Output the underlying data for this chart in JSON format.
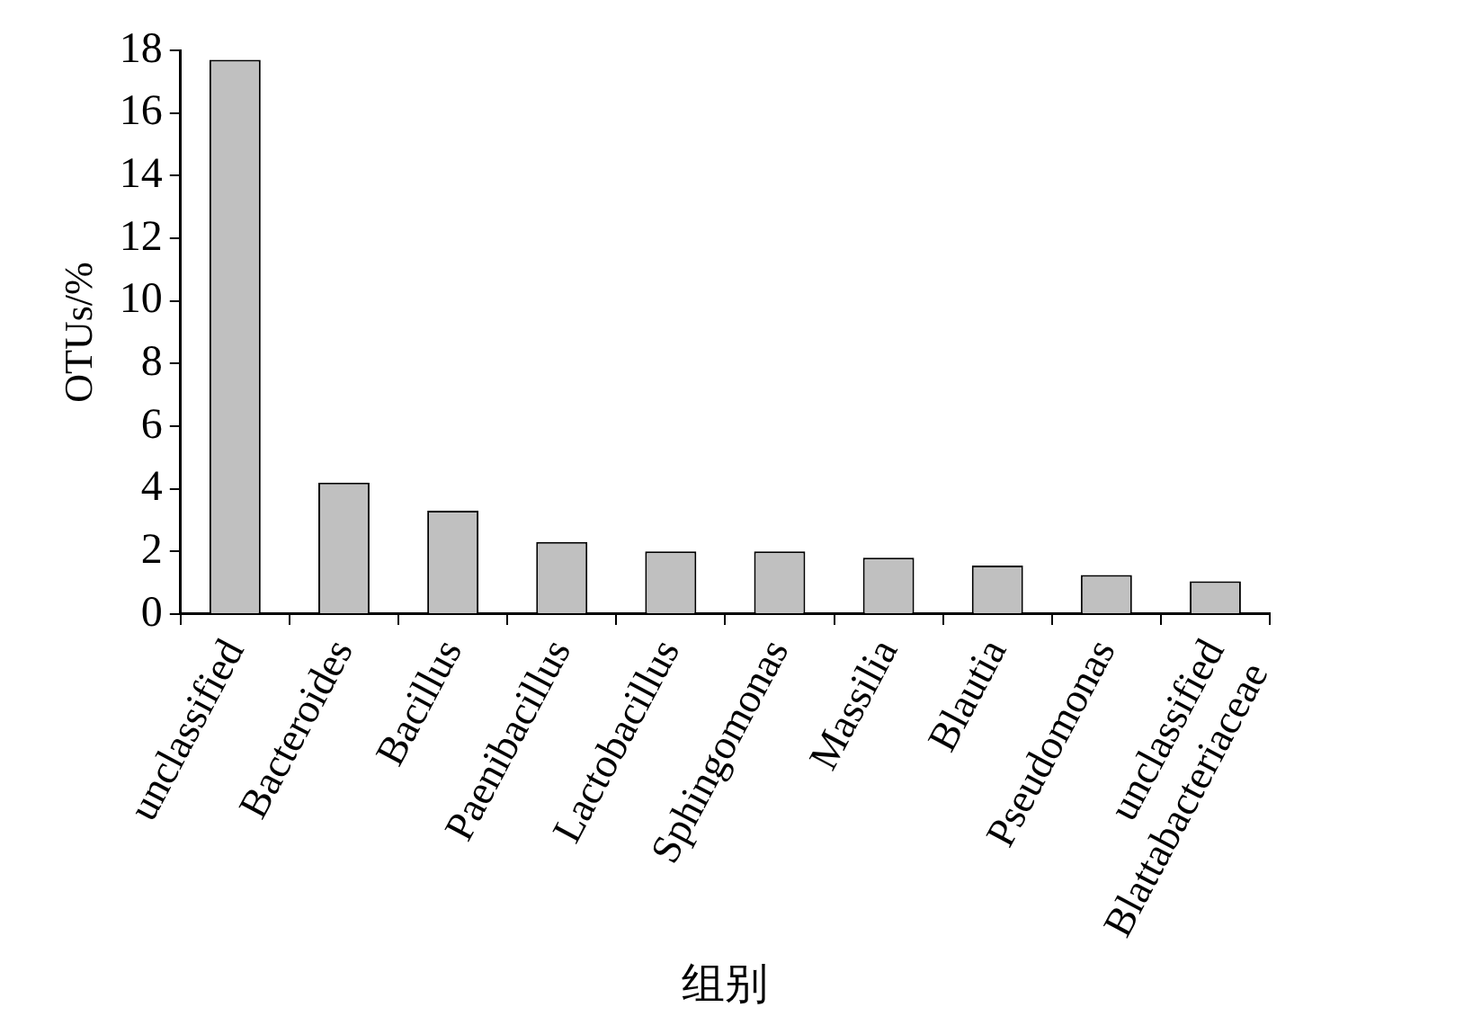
{
  "chart_data": {
    "type": "bar",
    "xlabel": "组别",
    "ylabel": "OTUs/%",
    "categories": [
      "unclassified",
      "Bacteroides",
      "Bacillus",
      "Paenibacillus",
      "Lactobacillus",
      "Sphingomonas",
      "Massilia",
      "Blautia",
      "Pseudomonas",
      "unclassified Blattabacteriaceae"
    ],
    "values": [
      17.7,
      4.2,
      3.3,
      2.3,
      2.0,
      2.0,
      1.8,
      1.55,
      1.25,
      1.05
    ],
    "color": "#c0c0c0",
    "ylim": [
      0,
      18
    ],
    "yticks": [
      0,
      2,
      4,
      6,
      8,
      10,
      12,
      14,
      16,
      18
    ],
    "grid": false,
    "legend": false
  }
}
